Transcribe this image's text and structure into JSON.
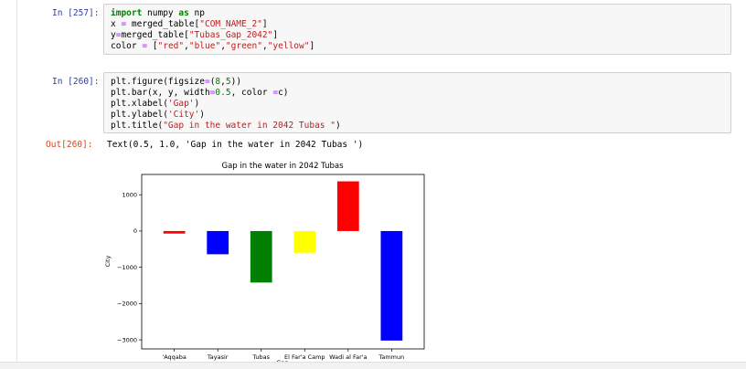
{
  "cells": [
    {
      "prompt": "In [257]:",
      "lines": [
        [
          {
            "t": "import",
            "c": "k"
          },
          {
            "t": " numpy "
          },
          {
            "t": "as",
            "c": "k"
          },
          {
            "t": " np"
          }
        ],
        [
          {
            "t": "x "
          },
          {
            "t": "=",
            "c": "o"
          },
          {
            "t": " merged_table["
          },
          {
            "t": "\"COM_NAME_2\"",
            "c": "s"
          },
          {
            "t": "]"
          }
        ],
        [
          {
            "t": "y"
          },
          {
            "t": "=",
            "c": "o"
          },
          {
            "t": "merged_table["
          },
          {
            "t": "\"Tubas_Gap_2042\"",
            "c": "s"
          },
          {
            "t": "]"
          }
        ],
        [
          {
            "t": "color "
          },
          {
            "t": "=",
            "c": "o"
          },
          {
            "t": " ["
          },
          {
            "t": "\"red\"",
            "c": "s"
          },
          {
            "t": ","
          },
          {
            "t": "\"blue\"",
            "c": "s"
          },
          {
            "t": ","
          },
          {
            "t": "\"green\"",
            "c": "s"
          },
          {
            "t": ","
          },
          {
            "t": "\"yellow\"",
            "c": "s"
          },
          {
            "t": "]"
          }
        ]
      ]
    },
    {
      "prompt": "In [260]:",
      "lines": [
        [
          {
            "t": "plt.figure(figsize"
          },
          {
            "t": "=",
            "c": "o"
          },
          {
            "t": "("
          },
          {
            "t": "8",
            "c": "n"
          },
          {
            "t": ","
          },
          {
            "t": "5",
            "c": "n"
          },
          {
            "t": "))"
          }
        ],
        [
          {
            "t": "plt.bar(x, y, width"
          },
          {
            "t": "=",
            "c": "o"
          },
          {
            "t": "0.5",
            "c": "n"
          },
          {
            "t": ", color "
          },
          {
            "t": "=",
            "c": "o"
          },
          {
            "t": "c)"
          }
        ],
        [
          {
            "t": "plt.xlabel("
          },
          {
            "t": "'Gap'",
            "c": "s"
          },
          {
            "t": ")"
          }
        ],
        [
          {
            "t": "plt.ylabel("
          },
          {
            "t": "'City'",
            "c": "s"
          },
          {
            "t": ")"
          }
        ],
        [
          {
            "t": "plt.title("
          },
          {
            "t": "\"Gap in the water in 2042 Tubas \"",
            "c": "s"
          },
          {
            "t": ")"
          }
        ]
      ]
    }
  ],
  "output": {
    "prompt": "Out[260]:",
    "text": "Text(0.5, 1.0, 'Gap in the water in 2042 Tubas ')"
  },
  "chart_data": {
    "type": "bar",
    "title": "Gap in the water in 2042 Tubas",
    "xlabel": "Gap",
    "ylabel": "City",
    "categories": [
      "'Aqqaba",
      "Tayasir",
      "Tubas",
      "El Far'a Camp",
      "Wadi al Far'a",
      "Tammun"
    ],
    "values": [
      -70,
      -640,
      -1420,
      -600,
      1370,
      -3020
    ],
    "colors": [
      "#ff0000",
      "#0000ff",
      "#008000",
      "#ffff00",
      "#ff0000",
      "#0000ff"
    ],
    "yticks": [
      1000,
      0,
      -1000,
      -2000,
      -3000
    ],
    "ylim": [
      -3250,
      1560
    ],
    "grid": false
  }
}
